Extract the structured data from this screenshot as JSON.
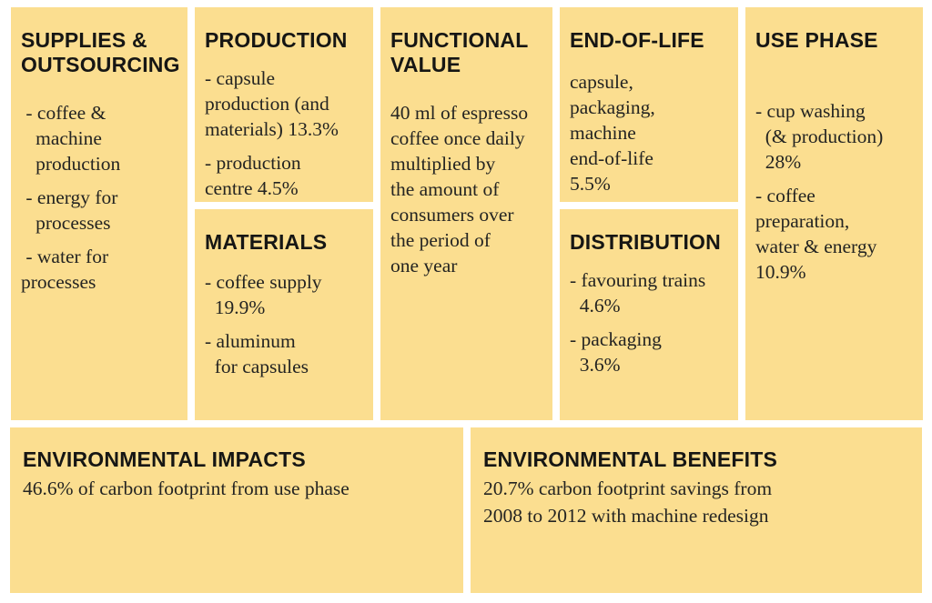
{
  "colors": {
    "background": "#ffffff",
    "box_fill": "#fbde90",
    "title_text": "#161614",
    "body_text": "#242422"
  },
  "boxes": {
    "supplies": {
      "title": "SUPPLIES &\nOUTSOURCING",
      "items": [
        " - coffee &\n   machine\n   production",
        " - energy for\n   processes",
        " - water for\nprocesses"
      ]
    },
    "production": {
      "title": "PRODUCTION",
      "items": [
        "- capsule\nproduction (and\nmaterials) 13.3%",
        "- production\ncentre 4.5%"
      ]
    },
    "materials": {
      "title": "MATERIALS",
      "items": [
        "- coffee supply\n  19.9%",
        "- aluminum\n  for capsules"
      ]
    },
    "functional_value": {
      "title": "FUNCTIONAL\nVALUE",
      "body": "40 ml of espresso\ncoffee once daily\nmultiplied by\nthe amount of\nconsumers over\nthe period of\none year"
    },
    "end_of_life": {
      "title": "END-OF-LIFE",
      "body": "capsule,\npackaging,\nmachine\nend-of-life\n5.5%"
    },
    "distribution": {
      "title": "DISTRIBUTION",
      "items": [
        "- favouring trains\n  4.6%",
        "- packaging\n  3.6%"
      ]
    },
    "use_phase": {
      "title": "USE PHASE",
      "items": [
        "- cup washing\n  (& production)\n  28%",
        "- coffee\npreparation,\nwater & energy\n10.9%"
      ]
    },
    "environmental_impacts": {
      "title": "ENVIRONMENTAL IMPACTS",
      "body": "46.6% of carbon footprint from use phase"
    },
    "environmental_benefits": {
      "title": "ENVIRONMENTAL BENEFITS",
      "body": "20.7% carbon footprint savings from\n2008 to 2012 with machine redesign"
    }
  }
}
